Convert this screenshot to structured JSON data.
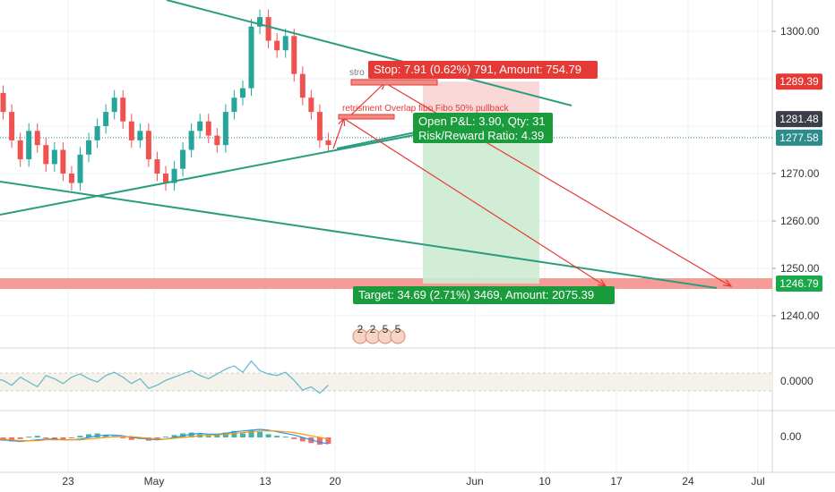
{
  "chart_data": [
    {
      "type": "line",
      "title": "",
      "xlabel": "",
      "ylabel": "",
      "ylim": [
        1234,
        1310
      ],
      "grid": true,
      "series": [
        {
          "kind": "ohlc_approx",
          "values": [
            1287,
            1283,
            1277,
            1273,
            1279,
            1276,
            1272,
            1275,
            1270,
            1268,
            1274,
            1277,
            1280,
            1283,
            1286,
            1281,
            1277,
            1279,
            1273,
            1270,
            1268,
            1271,
            1275,
            1279,
            1281,
            1278,
            1276,
            1283,
            1286,
            1288,
            1301,
            1303,
            1298,
            1296,
            1299,
            1291,
            1286,
            1283,
            1277,
            1276
          ]
        }
      ],
      "price_ticks": [
        "1300.00",
        "1270.00",
        "1260.00",
        "1250.00",
        "1240.00"
      ],
      "date_ticks": [
        "23",
        "May",
        "13",
        "20",
        "Jun",
        "10",
        "17",
        "24",
        "Jul"
      ],
      "price_tags": [
        {
          "value": 1289.39,
          "label": "1289.39",
          "color": "#e53935"
        },
        {
          "value": 1281.48,
          "label": "1281.48",
          "color": "#3a3f4a"
        },
        {
          "value": 1277.58,
          "label": "1277.58",
          "color": "#2c8c8c"
        },
        {
          "value": 1246.79,
          "label": "1246.79",
          "color": "#1aa84a"
        }
      ],
      "position": {
        "entry": 1281.48,
        "stop": 1289.39,
        "target": 1246.79,
        "stop_label": "Stop: 7.91 (0.62%) 791, Amount: 754.79",
        "pnl_label": "Open P&L: 3.90, Qty: 31",
        "rr_label": "Risk/Reward Ratio: 4.39",
        "target_label": "Target: 34.69 (2.71%) 3469, Amount: 2075.39"
      },
      "annotations": {
        "strong_label": "stro",
        "retracement_label": "retrisment  Overlap fibo  Fibo 50%  pullback",
        "event_digits": [
          "2",
          "2",
          "5",
          "5"
        ]
      },
      "colors": {
        "up": "#26a69a",
        "down": "#ef5350",
        "trendline": "#2a9d7f",
        "arrow": "#e53935",
        "support_zone": "#f28b82"
      }
    },
    {
      "type": "line",
      "title": "",
      "ylabel": "",
      "price_ticks": [
        "0.0000"
      ],
      "series": [
        {
          "kind": "oscillator",
          "values": [
            0.2,
            0.1,
            -0.2,
            0.3,
            0.0,
            -0.3,
            0.4,
            0.2,
            -0.1,
            0.3,
            0.5,
            0.2,
            0.0,
            0.4,
            0.6,
            0.3,
            -0.1,
            0.2,
            -0.4,
            -0.2,
            0.1,
            0.3,
            0.5,
            0.7,
            0.4,
            0.2,
            0.5,
            0.8,
            1.0,
            0.6,
            1.3,
            0.7,
            0.5,
            0.4,
            0.6,
            0.1,
            -0.5,
            -0.3,
            -0.7,
            -0.2
          ]
        }
      ]
    },
    {
      "type": "bar",
      "title": "",
      "price_ticks": [
        "0.00"
      ],
      "series": [
        {
          "kind": "histogram",
          "values": [
            -0.3,
            -0.4,
            -0.5,
            -0.2,
            0.1,
            0.2,
            -0.1,
            -0.2,
            -0.3,
            -0.1,
            0.2,
            0.4,
            0.5,
            0.3,
            0.2,
            -0.1,
            -0.3,
            -0.2,
            -0.4,
            -0.2,
            0.1,
            0.3,
            0.5,
            0.6,
            0.4,
            0.2,
            0.4,
            0.6,
            0.8,
            0.5,
            0.9,
            0.7,
            0.4,
            0.2,
            0.1,
            -0.2,
            -0.5,
            -0.7,
            -0.9,
            -0.8
          ]
        },
        {
          "kind": "macd_line",
          "values": [
            -0.2,
            -0.3,
            -0.4,
            -0.5,
            -0.4,
            -0.3,
            -0.2,
            -0.2,
            -0.3,
            -0.3,
            -0.2,
            0.0,
            0.2,
            0.3,
            0.3,
            0.2,
            0.0,
            -0.1,
            -0.2,
            -0.3,
            -0.2,
            0.0,
            0.2,
            0.4,
            0.5,
            0.4,
            0.4,
            0.5,
            0.7,
            0.8,
            0.9,
            1.0,
            0.9,
            0.7,
            0.5,
            0.3,
            0.0,
            -0.3,
            -0.6,
            -0.8
          ]
        },
        {
          "kind": "signal_line",
          "values": [
            -0.1,
            -0.2,
            -0.3,
            -0.4,
            -0.4,
            -0.4,
            -0.3,
            -0.3,
            -0.3,
            -0.3,
            -0.3,
            -0.2,
            -0.1,
            0.0,
            0.1,
            0.1,
            0.1,
            0.0,
            -0.1,
            -0.2,
            -0.2,
            -0.1,
            0.0,
            0.1,
            0.2,
            0.3,
            0.3,
            0.4,
            0.5,
            0.6,
            0.7,
            0.8,
            0.8,
            0.8,
            0.7,
            0.6,
            0.4,
            0.2,
            0.0,
            -0.2
          ]
        }
      ]
    }
  ]
}
